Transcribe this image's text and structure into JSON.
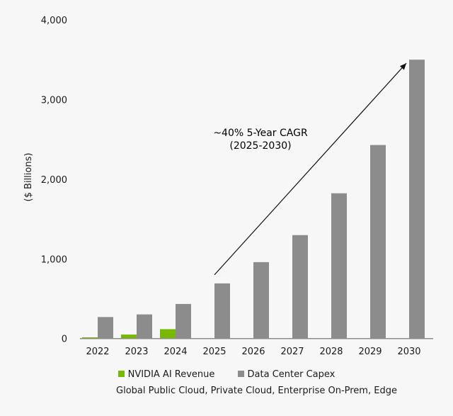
{
  "chart_data": {
    "type": "bar",
    "ylabel": "($ Billions)",
    "xlabel": "Global Public Cloud, Private Cloud, Enterprise On-Prem, Edge",
    "ylim": [
      0,
      4000
    ],
    "yticks": [
      0,
      1000,
      2000,
      3000,
      4000
    ],
    "ytick_labels": [
      "0",
      "1,000",
      "2,000",
      "3,000",
      "4,000"
    ],
    "categories": [
      "2022",
      "2023",
      "2024",
      "2025",
      "2026",
      "2027",
      "2028",
      "2029",
      "2030"
    ],
    "series": [
      {
        "name": "NVIDIA AI Revenue",
        "color": "#76b900",
        "values": [
          15,
          50,
          118,
          null,
          null,
          null,
          null,
          null,
          null
        ]
      },
      {
        "name": "Data Center Capex",
        "color": "#8c8c8c",
        "values": [
          270,
          303,
          434,
          692,
          959,
          1298,
          1823,
          2429,
          3500
        ]
      }
    ],
    "annotation": {
      "line1": "~40% 5-Year CAGR",
      "line2": "(2025-2030)",
      "from": [
        "2025",
        800
      ],
      "to": [
        "2030",
        3500
      ]
    },
    "grid": false,
    "legend_position": "bottom"
  }
}
